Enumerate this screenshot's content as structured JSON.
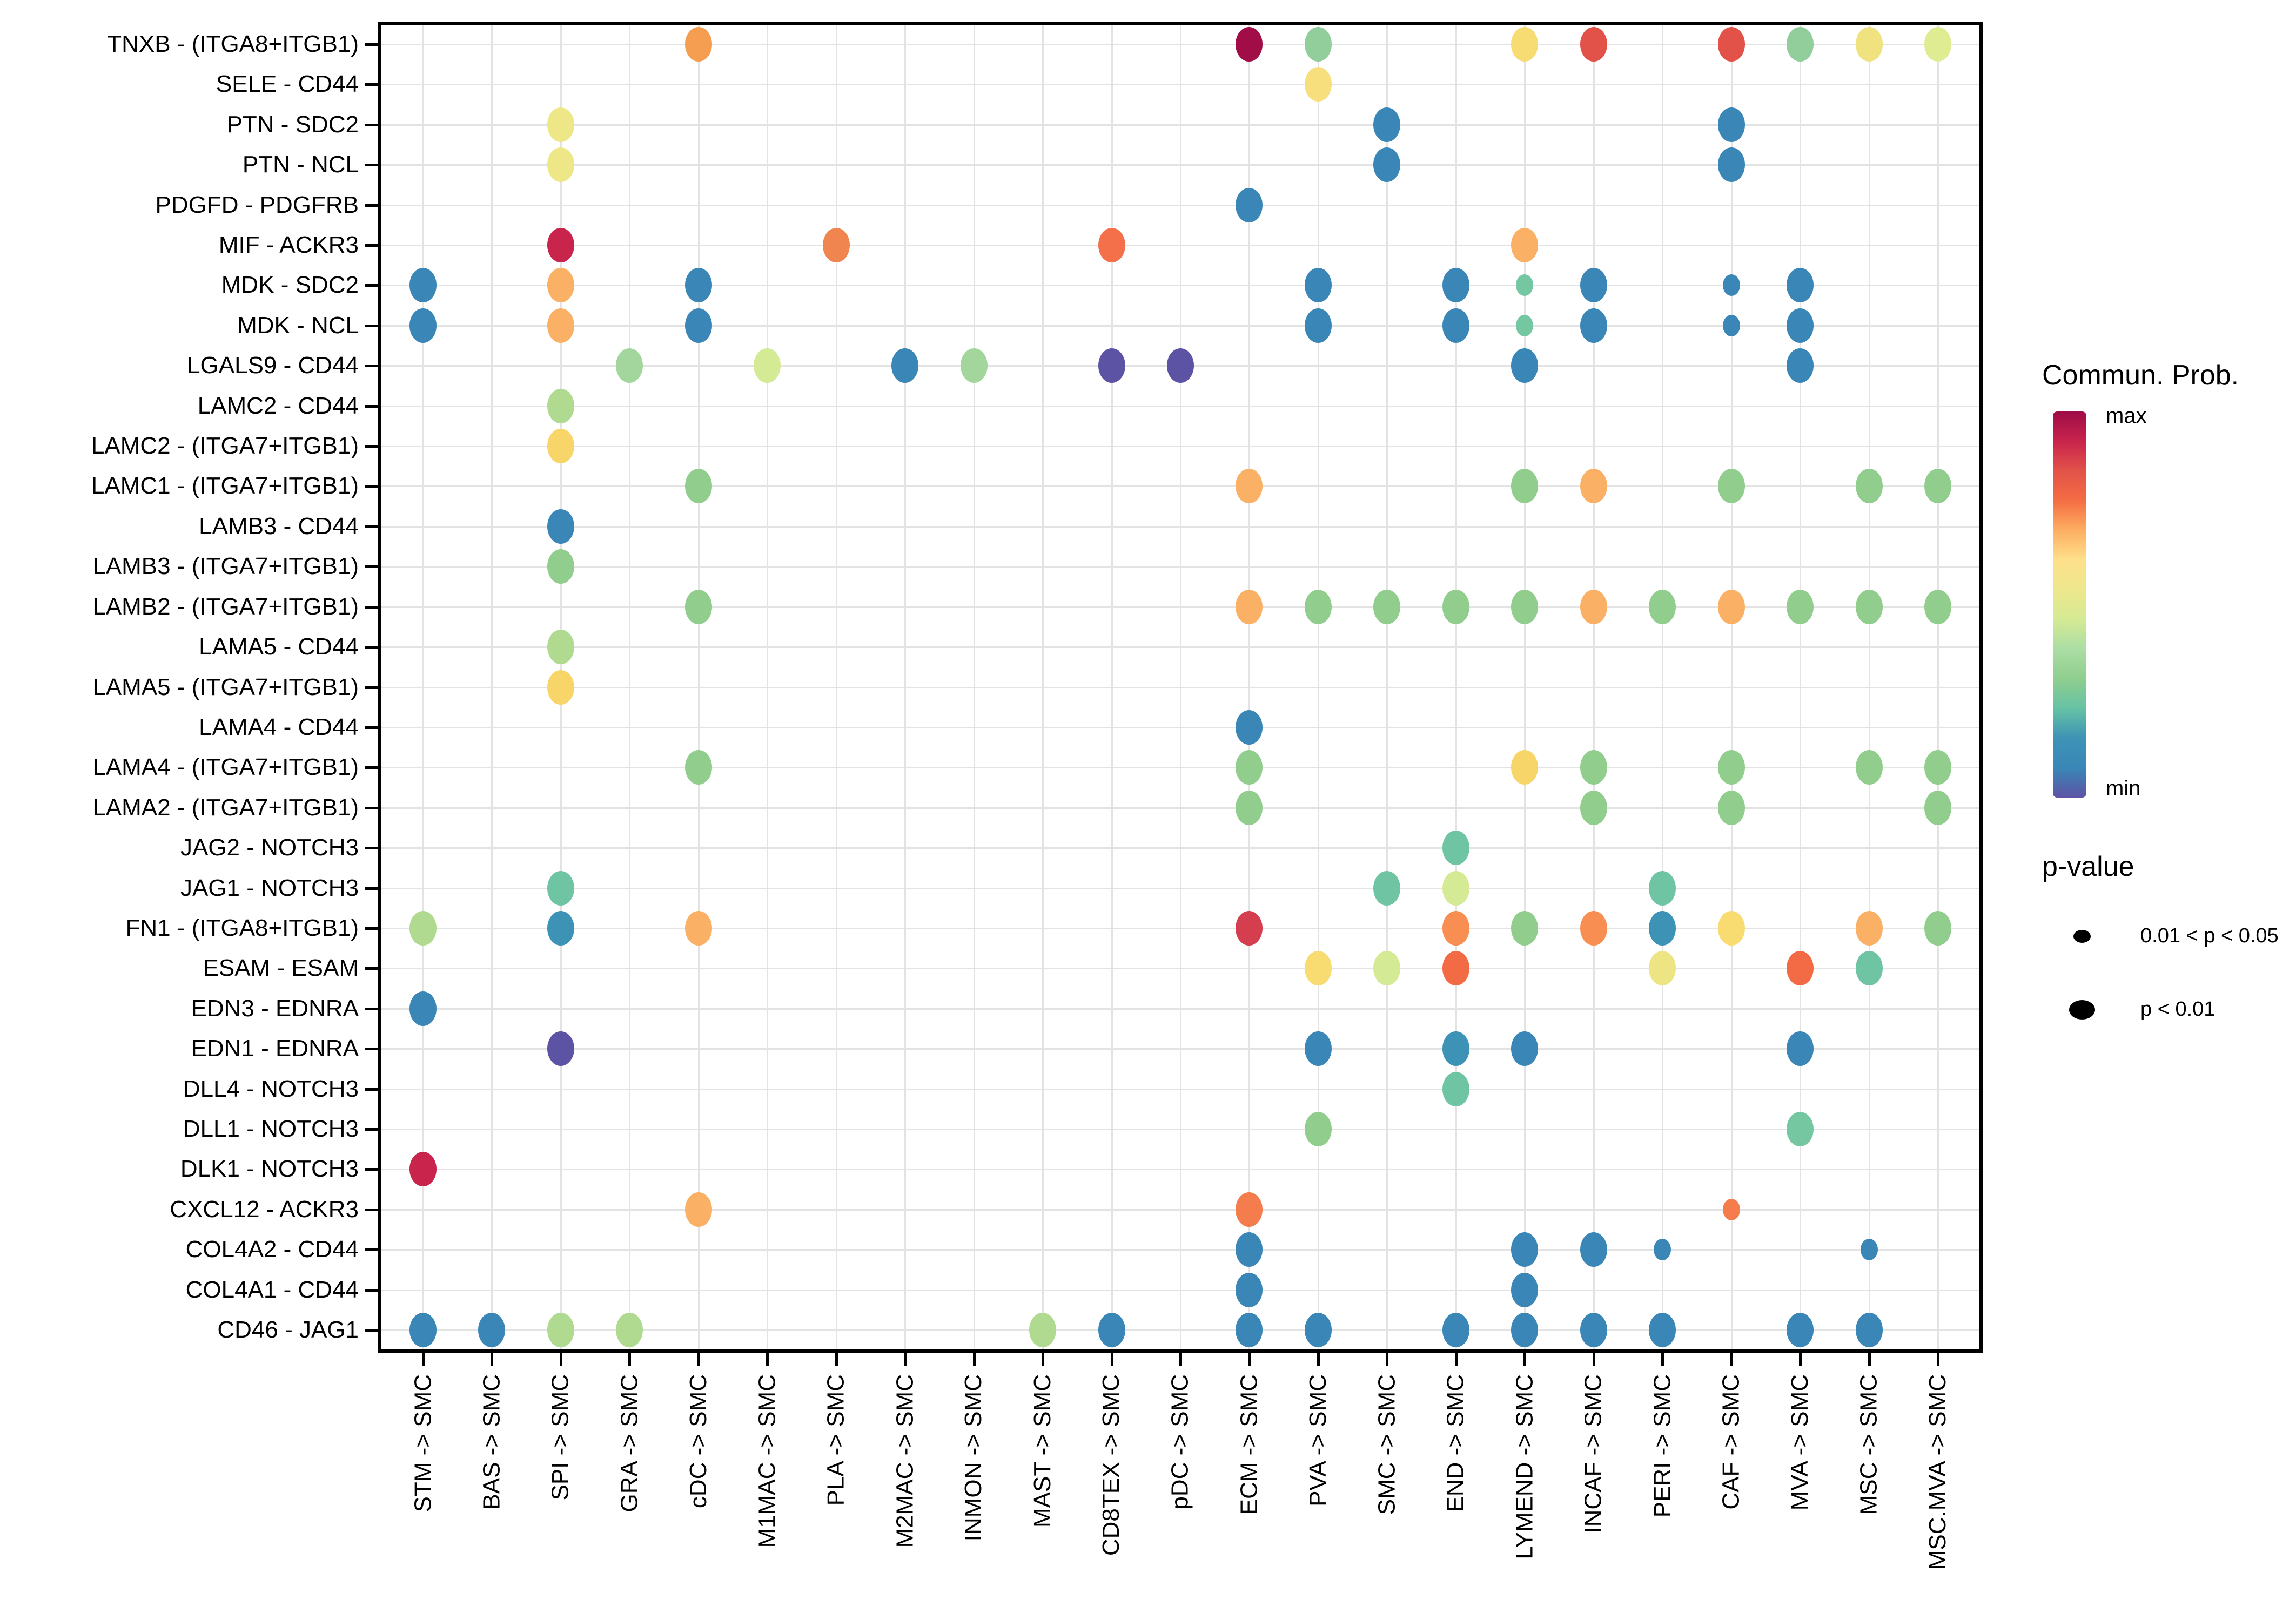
{
  "chart_data": {
    "type": "bubble-matrix",
    "description": "Cell-cell communication dot plot: ligand-receptor pairs (rows) vs sender->receiver cell pairs (columns); dot color = communication probability, dot size = p-value class",
    "x_categories": [
      "STM -> SMC",
      "BAS -> SMC",
      "SPI -> SMC",
      "GRA -> SMC",
      "cDC -> SMC",
      "M1MAC -> SMC",
      "PLA -> SMC",
      "M2MAC -> SMC",
      "INMON -> SMC",
      "MAST -> SMC",
      "CD8TEX -> SMC",
      "pDC -> SMC",
      "ECM -> SMC",
      "PVA -> SMC",
      "SMC -> SMC",
      "END -> SMC",
      "LYMEND -> SMC",
      "INCAF -> SMC",
      "PERI -> SMC",
      "CAF -> SMC",
      "MVA -> SMC",
      "MSC -> SMC",
      "MSC.MVA -> SMC"
    ],
    "y_categories": [
      "TNXB - (ITGA8+ITGB1)",
      "SELE - CD44",
      "PTN - SDC2",
      "PTN - NCL",
      "PDGFD - PDGFRB",
      "MIF - ACKR3",
      "MDK - SDC2",
      "MDK - NCL",
      "LGALS9 - CD44",
      "LAMC2 - CD44",
      "LAMC2 - (ITGA7+ITGB1)",
      "LAMC1 - (ITGA7+ITGB1)",
      "LAMB3 - CD44",
      "LAMB3 - (ITGA7+ITGB1)",
      "LAMB2 - (ITGA7+ITGB1)",
      "LAMA5 - CD44",
      "LAMA5 - (ITGA7+ITGB1)",
      "LAMA4 - CD44",
      "LAMA4 - (ITGA7+ITGB1)",
      "LAMA2 - (ITGA7+ITGB1)",
      "JAG2 - NOTCH3",
      "JAG1 - NOTCH3",
      "FN1 - (ITGA8+ITGB1)",
      "ESAM - ESAM",
      "EDN3 - EDNRA",
      "EDN1 - EDNRA",
      "DLL4 - NOTCH3",
      "DLL1 - NOTCH3",
      "DLK1 - NOTCH3",
      "CXCL12 - ACKR3",
      "COL4A2 - CD44",
      "COL4A1 - CD44",
      "CD46 - JAG1"
    ],
    "legend": {
      "color_title": "Commun. Prob.",
      "color_max_label": "max",
      "color_min_label": "min",
      "color_gradient": [
        "#9e0c47",
        "#c8244c",
        "#e25249",
        "#f46d43",
        "#fdae61",
        "#fee08b",
        "#eee78d",
        "#d5ea94",
        "#abdda4",
        "#8fce8e",
        "#66c2a5",
        "#3d93b5",
        "#3a87b7",
        "#5d53a5"
      ],
      "size_title": "p-value",
      "size_entries": [
        {
          "label": "0.01 < p < 0.05",
          "size": "small"
        },
        {
          "label": "p < 0.01",
          "size": "large"
        }
      ]
    },
    "point_format": [
      "row_index",
      "col_index",
      "color",
      "p_size(L=p<0.01,S=0.01<p<0.05)"
    ],
    "points": [
      [
        0,
        4,
        "#f59d51",
        "L"
      ],
      [
        0,
        12,
        "#a00d47",
        "L"
      ],
      [
        0,
        13,
        "#91ce9b",
        "L"
      ],
      [
        0,
        16,
        "#f7dc74",
        "L"
      ],
      [
        0,
        17,
        "#e25249",
        "L"
      ],
      [
        0,
        19,
        "#e25249",
        "L"
      ],
      [
        0,
        20,
        "#91ce9b",
        "L"
      ],
      [
        0,
        21,
        "#f0e27e",
        "L"
      ],
      [
        0,
        22,
        "#dfec91",
        "L"
      ],
      [
        1,
        13,
        "#f7df7e",
        "L"
      ],
      [
        2,
        2,
        "#ede788",
        "L"
      ],
      [
        2,
        14,
        "#3a87b7",
        "L"
      ],
      [
        2,
        19,
        "#3a87b7",
        "L"
      ],
      [
        3,
        2,
        "#ede788",
        "L"
      ],
      [
        3,
        14,
        "#3a87b7",
        "L"
      ],
      [
        3,
        19,
        "#3a87b7",
        "L"
      ],
      [
        4,
        12,
        "#3a87b7",
        "L"
      ],
      [
        5,
        2,
        "#c8244c",
        "L"
      ],
      [
        5,
        6,
        "#f1854f",
        "L"
      ],
      [
        5,
        10,
        "#f3704b",
        "L"
      ],
      [
        5,
        16,
        "#fbb165",
        "L"
      ],
      [
        6,
        0,
        "#3a87b7",
        "L"
      ],
      [
        6,
        2,
        "#fbb165",
        "L"
      ],
      [
        6,
        4,
        "#3a87b7",
        "L"
      ],
      [
        6,
        13,
        "#3a87b7",
        "L"
      ],
      [
        6,
        15,
        "#3a87b7",
        "L"
      ],
      [
        6,
        16,
        "#74c7a0",
        "S"
      ],
      [
        6,
        17,
        "#3a87b7",
        "L"
      ],
      [
        6,
        19,
        "#3a87b7",
        "S"
      ],
      [
        6,
        20,
        "#3a87b7",
        "L"
      ],
      [
        7,
        0,
        "#3a87b7",
        "L"
      ],
      [
        7,
        2,
        "#fbb165",
        "L"
      ],
      [
        7,
        4,
        "#3a87b7",
        "L"
      ],
      [
        7,
        13,
        "#3a87b7",
        "L"
      ],
      [
        7,
        15,
        "#3a87b7",
        "L"
      ],
      [
        7,
        16,
        "#74c7a0",
        "S"
      ],
      [
        7,
        17,
        "#3a87b7",
        "L"
      ],
      [
        7,
        19,
        "#3a87b7",
        "S"
      ],
      [
        7,
        20,
        "#3a87b7",
        "L"
      ],
      [
        8,
        3,
        "#a3d69c",
        "L"
      ],
      [
        8,
        5,
        "#d5ea94",
        "L"
      ],
      [
        8,
        7,
        "#3a87b7",
        "L"
      ],
      [
        8,
        8,
        "#a3d69c",
        "L"
      ],
      [
        8,
        10,
        "#5d53a5",
        "L"
      ],
      [
        8,
        11,
        "#5d53a5",
        "L"
      ],
      [
        8,
        16,
        "#3a87b7",
        "L"
      ],
      [
        8,
        20,
        "#3a87b7",
        "L"
      ],
      [
        9,
        2,
        "#afda8f",
        "L"
      ],
      [
        10,
        2,
        "#f8d568",
        "L"
      ],
      [
        11,
        4,
        "#91ce8e",
        "L"
      ],
      [
        11,
        12,
        "#fbb165",
        "L"
      ],
      [
        11,
        16,
        "#91ce8e",
        "L"
      ],
      [
        11,
        17,
        "#fbb165",
        "L"
      ],
      [
        11,
        19,
        "#91ce8e",
        "L"
      ],
      [
        11,
        21,
        "#91ce8e",
        "L"
      ],
      [
        11,
        22,
        "#91ce8e",
        "L"
      ],
      [
        12,
        2,
        "#3a87b7",
        "L"
      ],
      [
        13,
        2,
        "#91ce8e",
        "L"
      ],
      [
        14,
        4,
        "#91ce8e",
        "L"
      ],
      [
        14,
        12,
        "#fbb165",
        "L"
      ],
      [
        14,
        13,
        "#91ce8e",
        "L"
      ],
      [
        14,
        14,
        "#91ce8e",
        "L"
      ],
      [
        14,
        15,
        "#91ce8e",
        "L"
      ],
      [
        14,
        16,
        "#91ce8e",
        "L"
      ],
      [
        14,
        17,
        "#fbb165",
        "L"
      ],
      [
        14,
        18,
        "#91ce8e",
        "L"
      ],
      [
        14,
        19,
        "#fbb165",
        "L"
      ],
      [
        14,
        20,
        "#91ce8e",
        "L"
      ],
      [
        14,
        21,
        "#91ce8e",
        "L"
      ],
      [
        14,
        22,
        "#91ce8e",
        "L"
      ],
      [
        15,
        2,
        "#afda8f",
        "L"
      ],
      [
        16,
        2,
        "#f8d568",
        "L"
      ],
      [
        17,
        12,
        "#3a87b7",
        "L"
      ],
      [
        18,
        4,
        "#91ce8e",
        "L"
      ],
      [
        18,
        12,
        "#91ce8e",
        "L"
      ],
      [
        18,
        16,
        "#f8d568",
        "L"
      ],
      [
        18,
        17,
        "#91ce8e",
        "L"
      ],
      [
        18,
        19,
        "#91ce8e",
        "L"
      ],
      [
        18,
        21,
        "#91ce8e",
        "L"
      ],
      [
        18,
        22,
        "#91ce8e",
        "L"
      ],
      [
        19,
        12,
        "#91ce8e",
        "L"
      ],
      [
        19,
        17,
        "#91ce8e",
        "L"
      ],
      [
        19,
        19,
        "#91ce8e",
        "L"
      ],
      [
        19,
        22,
        "#91ce8e",
        "L"
      ],
      [
        20,
        15,
        "#6fc5a3",
        "L"
      ],
      [
        21,
        2,
        "#6fc5a3",
        "L"
      ],
      [
        21,
        14,
        "#6fc5a3",
        "L"
      ],
      [
        21,
        15,
        "#d5ea94",
        "L"
      ],
      [
        21,
        18,
        "#6fc5a3",
        "L"
      ],
      [
        22,
        0,
        "#afda8f",
        "L"
      ],
      [
        22,
        2,
        "#3d93b5",
        "L"
      ],
      [
        22,
        4,
        "#fbb165",
        "L"
      ],
      [
        22,
        12,
        "#d53e4f",
        "L"
      ],
      [
        22,
        15,
        "#f98e52",
        "L"
      ],
      [
        22,
        16,
        "#91ce8e",
        "L"
      ],
      [
        22,
        17,
        "#f98e52",
        "L"
      ],
      [
        22,
        18,
        "#3d93b5",
        "L"
      ],
      [
        22,
        19,
        "#f8dc71",
        "L"
      ],
      [
        22,
        21,
        "#fbb165",
        "L"
      ],
      [
        22,
        22,
        "#91ce8e",
        "L"
      ],
      [
        23,
        13,
        "#f8dc71",
        "L"
      ],
      [
        23,
        14,
        "#d5ea94",
        "L"
      ],
      [
        23,
        15,
        "#f26b44",
        "L"
      ],
      [
        23,
        18,
        "#ede583",
        "L"
      ],
      [
        23,
        20,
        "#f26b44",
        "L"
      ],
      [
        23,
        21,
        "#6fc5a3",
        "L"
      ],
      [
        24,
        0,
        "#3a87b7",
        "L"
      ],
      [
        25,
        2,
        "#5d53a5",
        "L"
      ],
      [
        25,
        13,
        "#3a87b7",
        "L"
      ],
      [
        25,
        15,
        "#3d93b5",
        "L"
      ],
      [
        25,
        16,
        "#3a87b7",
        "L"
      ],
      [
        25,
        20,
        "#3a87b7",
        "L"
      ],
      [
        26,
        15,
        "#6fc5a3",
        "L"
      ],
      [
        27,
        13,
        "#91ce8e",
        "L"
      ],
      [
        27,
        20,
        "#74c7a0",
        "L"
      ],
      [
        28,
        0,
        "#c8244c",
        "L"
      ],
      [
        29,
        4,
        "#fbb165",
        "L"
      ],
      [
        29,
        12,
        "#f47c4d",
        "L"
      ],
      [
        29,
        19,
        "#f47c4d",
        "S"
      ],
      [
        30,
        12,
        "#3a87b7",
        "L"
      ],
      [
        30,
        16,
        "#3a87b7",
        "L"
      ],
      [
        30,
        17,
        "#3a87b7",
        "L"
      ],
      [
        30,
        18,
        "#3a87b7",
        "S"
      ],
      [
        30,
        21,
        "#3a87b7",
        "S"
      ],
      [
        31,
        12,
        "#3a87b7",
        "L"
      ],
      [
        31,
        16,
        "#3a87b7",
        "L"
      ],
      [
        32,
        0,
        "#3a87b7",
        "L"
      ],
      [
        32,
        1,
        "#3a87b7",
        "L"
      ],
      [
        32,
        2,
        "#afda8f",
        "L"
      ],
      [
        32,
        3,
        "#afda8f",
        "L"
      ],
      [
        32,
        9,
        "#afda8f",
        "L"
      ],
      [
        32,
        10,
        "#3a87b7",
        "L"
      ],
      [
        32,
        12,
        "#3a87b7",
        "L"
      ],
      [
        32,
        13,
        "#3a87b7",
        "L"
      ],
      [
        32,
        15,
        "#3a87b7",
        "L"
      ],
      [
        32,
        16,
        "#3a87b7",
        "L"
      ],
      [
        32,
        17,
        "#3a87b7",
        "L"
      ],
      [
        32,
        18,
        "#3a87b7",
        "L"
      ],
      [
        32,
        20,
        "#3a87b7",
        "L"
      ],
      [
        32,
        21,
        "#3a87b7",
        "L"
      ]
    ]
  }
}
